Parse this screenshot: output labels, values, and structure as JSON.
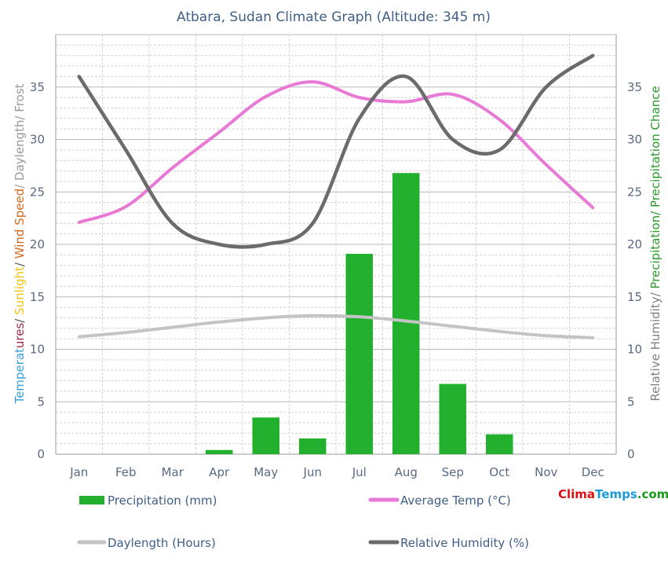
{
  "chart_data": {
    "type": "bar",
    "title": "Atbara, Sudan Climate Graph (Altitude: 345 m)",
    "categories": [
      "Jan",
      "Feb",
      "Mar",
      "Apr",
      "May",
      "Jun",
      "Jul",
      "Aug",
      "Sep",
      "Oct",
      "Nov",
      "Dec"
    ],
    "ylim": [
      0,
      40
    ],
    "ticks": [
      0,
      5,
      10,
      15,
      20,
      25,
      30,
      35
    ],
    "grid": true,
    "left_axis_label_parts": [
      {
        "text": "Temperat",
        "color": "#3aa0d6"
      },
      {
        "text": "ures",
        "color": "#9b2a4a"
      },
      {
        "text": "/ ",
        "color": "#555555"
      },
      {
        "text": "Sunlight",
        "color": "#f2c40f"
      },
      {
        "text": "/ ",
        "color": "#555555"
      },
      {
        "text": "Wind Speed",
        "color": "#d2691e"
      },
      {
        "text": "/ Daylength/ Frost",
        "color": "#999999"
      }
    ],
    "right_axis_label_parts": [
      {
        "text": "Relative Humidity/ ",
        "color": "#808080"
      },
      {
        "text": "Precipitation/ Precipitation Chance",
        "color": "#2a9a2a"
      }
    ],
    "series": [
      {
        "name": "Precipitation (mm)",
        "kind": "bar",
        "color": "#22b02e",
        "values": [
          0,
          0,
          0,
          0.4,
          3.5,
          1.5,
          19.1,
          26.8,
          6.7,
          1.9,
          0,
          0
        ]
      },
      {
        "name": "Average Temp (°C)",
        "kind": "line",
        "color": "#e879d5",
        "values": [
          22.1,
          23.6,
          27.3,
          30.7,
          34.1,
          35.5,
          34.0,
          33.6,
          34.3,
          31.9,
          27.6,
          23.5
        ]
      },
      {
        "name": "Daylength (Hours)",
        "kind": "line",
        "color": "#c4c4c4",
        "values": [
          11.2,
          11.6,
          12.1,
          12.6,
          13.0,
          13.2,
          13.1,
          12.7,
          12.2,
          11.7,
          11.3,
          11.1
        ]
      },
      {
        "name": "Relative Humidity (%)",
        "kind": "line",
        "color": "#6b6b6b",
        "values": [
          36,
          29,
          22,
          20,
          20,
          22,
          32,
          36,
          30,
          29,
          35,
          38
        ]
      }
    ]
  },
  "brand": {
    "part1": "Clima",
    "part2": "Temps",
    "part3": ".com",
    "color1": "#dd1111",
    "color2": "#1c9bd8",
    "color3": "#1a9a1a"
  }
}
